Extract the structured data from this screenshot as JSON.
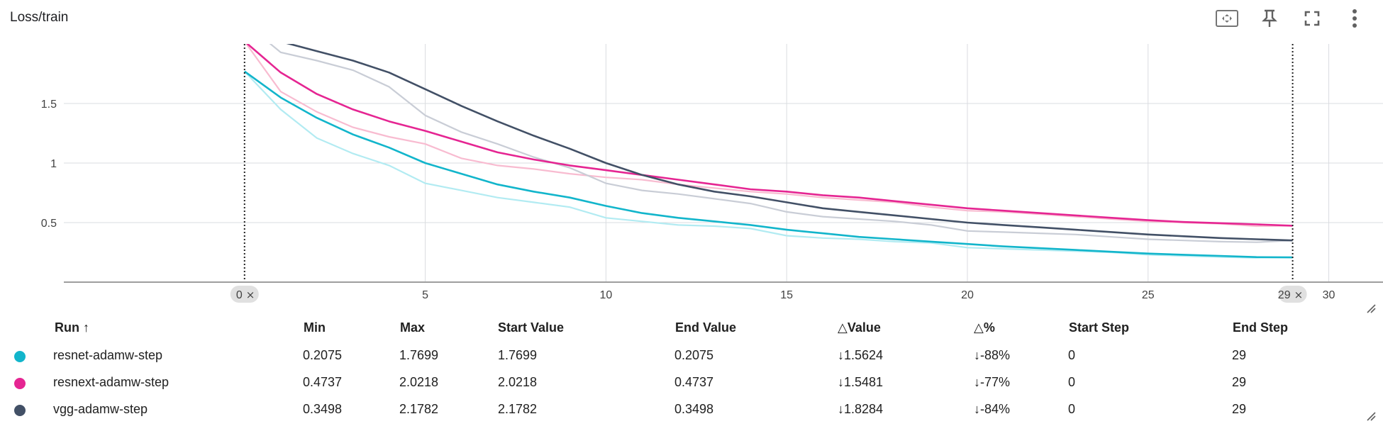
{
  "card": {
    "title": "Loss/train"
  },
  "toolbar": {
    "fit_icon": "fit-to-data-icon",
    "pin_icon": "pin-icon",
    "fullscreen_icon": "fullscreen-icon",
    "more_icon": "more-vert-icon"
  },
  "chart_data": {
    "type": "line",
    "title": "Loss/train",
    "xlabel": "",
    "ylabel": "",
    "xlim": [
      -5,
      31.5
    ],
    "ylim": [
      0,
      2
    ],
    "x_ticks": [
      "5",
      "10",
      "15",
      "20",
      "25",
      "30"
    ],
    "y_ticks": [
      "0.5",
      "1",
      "1.5"
    ],
    "grid": true,
    "range_markers": [
      {
        "step": 0,
        "label": "0"
      },
      {
        "step": 29,
        "label": "29"
      }
    ],
    "series": [
      {
        "name": "resnet-adamw-step",
        "color": "#12b5cb",
        "raw_color": "#b2ebf2",
        "x": [
          0,
          1,
          2,
          3,
          4,
          5,
          6,
          7,
          8,
          9,
          10,
          11,
          12,
          13,
          14,
          15,
          16,
          17,
          18,
          19,
          20,
          21,
          22,
          23,
          24,
          25,
          26,
          27,
          28,
          29
        ],
        "y": [
          1.7699,
          1.55,
          1.38,
          1.24,
          1.13,
          1.0,
          0.91,
          0.82,
          0.76,
          0.71,
          0.64,
          0.58,
          0.54,
          0.51,
          0.48,
          0.44,
          0.41,
          0.38,
          0.36,
          0.34,
          0.32,
          0.3,
          0.285,
          0.27,
          0.255,
          0.24,
          0.23,
          0.22,
          0.21,
          0.2075
        ],
        "raw_y": [
          1.7699,
          1.45,
          1.21,
          1.08,
          0.98,
          0.83,
          0.77,
          0.71,
          0.67,
          0.63,
          0.54,
          0.51,
          0.48,
          0.47,
          0.45,
          0.39,
          0.37,
          0.36,
          0.34,
          0.33,
          0.29,
          0.28,
          0.27,
          0.26,
          0.25,
          0.23,
          0.22,
          0.21,
          0.205,
          0.2075
        ]
      },
      {
        "name": "resnext-adamw-step",
        "color": "#e52592",
        "raw_color": "#f8bbd0",
        "x": [
          0,
          1,
          2,
          3,
          4,
          5,
          6,
          7,
          8,
          9,
          10,
          11,
          12,
          13,
          14,
          15,
          16,
          17,
          18,
          19,
          20,
          21,
          22,
          23,
          24,
          25,
          26,
          27,
          28,
          29
        ],
        "y": [
          2.0218,
          1.76,
          1.58,
          1.45,
          1.35,
          1.27,
          1.18,
          1.09,
          1.03,
          0.98,
          0.94,
          0.9,
          0.86,
          0.82,
          0.78,
          0.76,
          0.73,
          0.71,
          0.68,
          0.65,
          0.62,
          0.6,
          0.58,
          0.56,
          0.54,
          0.52,
          0.505,
          0.495,
          0.485,
          0.4737
        ],
        "raw_y": [
          2.0218,
          1.6,
          1.43,
          1.3,
          1.22,
          1.16,
          1.04,
          0.98,
          0.95,
          0.91,
          0.88,
          0.86,
          0.82,
          0.79,
          0.76,
          0.74,
          0.71,
          0.69,
          0.67,
          0.63,
          0.6,
          0.59,
          0.57,
          0.55,
          0.53,
          0.51,
          0.5,
          0.49,
          0.47,
          0.4737
        ]
      },
      {
        "name": "vgg-adamw-step",
        "color": "#425066",
        "raw_color": "#c9cdd6",
        "x": [
          0,
          1,
          2,
          3,
          4,
          5,
          6,
          7,
          8,
          9,
          10,
          11,
          12,
          13,
          14,
          15,
          16,
          17,
          18,
          19,
          20,
          21,
          22,
          23,
          24,
          25,
          26,
          27,
          28,
          29
        ],
        "y": [
          2.1782,
          2.02,
          1.94,
          1.86,
          1.76,
          1.62,
          1.48,
          1.35,
          1.23,
          1.12,
          1.0,
          0.9,
          0.82,
          0.76,
          0.72,
          0.67,
          0.62,
          0.59,
          0.56,
          0.53,
          0.5,
          0.48,
          0.46,
          0.44,
          0.42,
          0.4,
          0.385,
          0.37,
          0.36,
          0.3498
        ],
        "raw_y": [
          2.1782,
          1.93,
          1.86,
          1.78,
          1.64,
          1.4,
          1.26,
          1.16,
          1.05,
          0.96,
          0.83,
          0.77,
          0.74,
          0.7,
          0.66,
          0.59,
          0.55,
          0.53,
          0.51,
          0.48,
          0.43,
          0.42,
          0.41,
          0.4,
          0.38,
          0.36,
          0.35,
          0.34,
          0.335,
          0.3498
        ]
      }
    ]
  },
  "table": {
    "headers": {
      "run": "Run ↑",
      "min": "Min",
      "max": "Max",
      "start_value": "Start Value",
      "end_value": "End Value",
      "delta_value": "△Value",
      "delta_pct": "△%",
      "start_step": "Start Step",
      "end_step": "End Step"
    },
    "rows": [
      {
        "color": "#12b5cb",
        "run": "resnet-adamw-step",
        "min": "0.2075",
        "max": "1.7699",
        "start_value": "1.7699",
        "end_value": "0.2075",
        "delta_value": "↓1.5624",
        "delta_pct": "↓-88%",
        "start_step": "0",
        "end_step": "29"
      },
      {
        "color": "#e52592",
        "run": "resnext-adamw-step",
        "min": "0.4737",
        "max": "2.0218",
        "start_value": "2.0218",
        "end_value": "0.4737",
        "delta_value": "↓1.5481",
        "delta_pct": "↓-77%",
        "start_step": "0",
        "end_step": "29"
      },
      {
        "color": "#425066",
        "run": "vgg-adamw-step",
        "min": "0.3498",
        "max": "2.1782",
        "start_value": "2.1782",
        "end_value": "0.3498",
        "delta_value": "↓1.8284",
        "delta_pct": "↓-84%",
        "start_step": "0",
        "end_step": "29"
      }
    ]
  }
}
